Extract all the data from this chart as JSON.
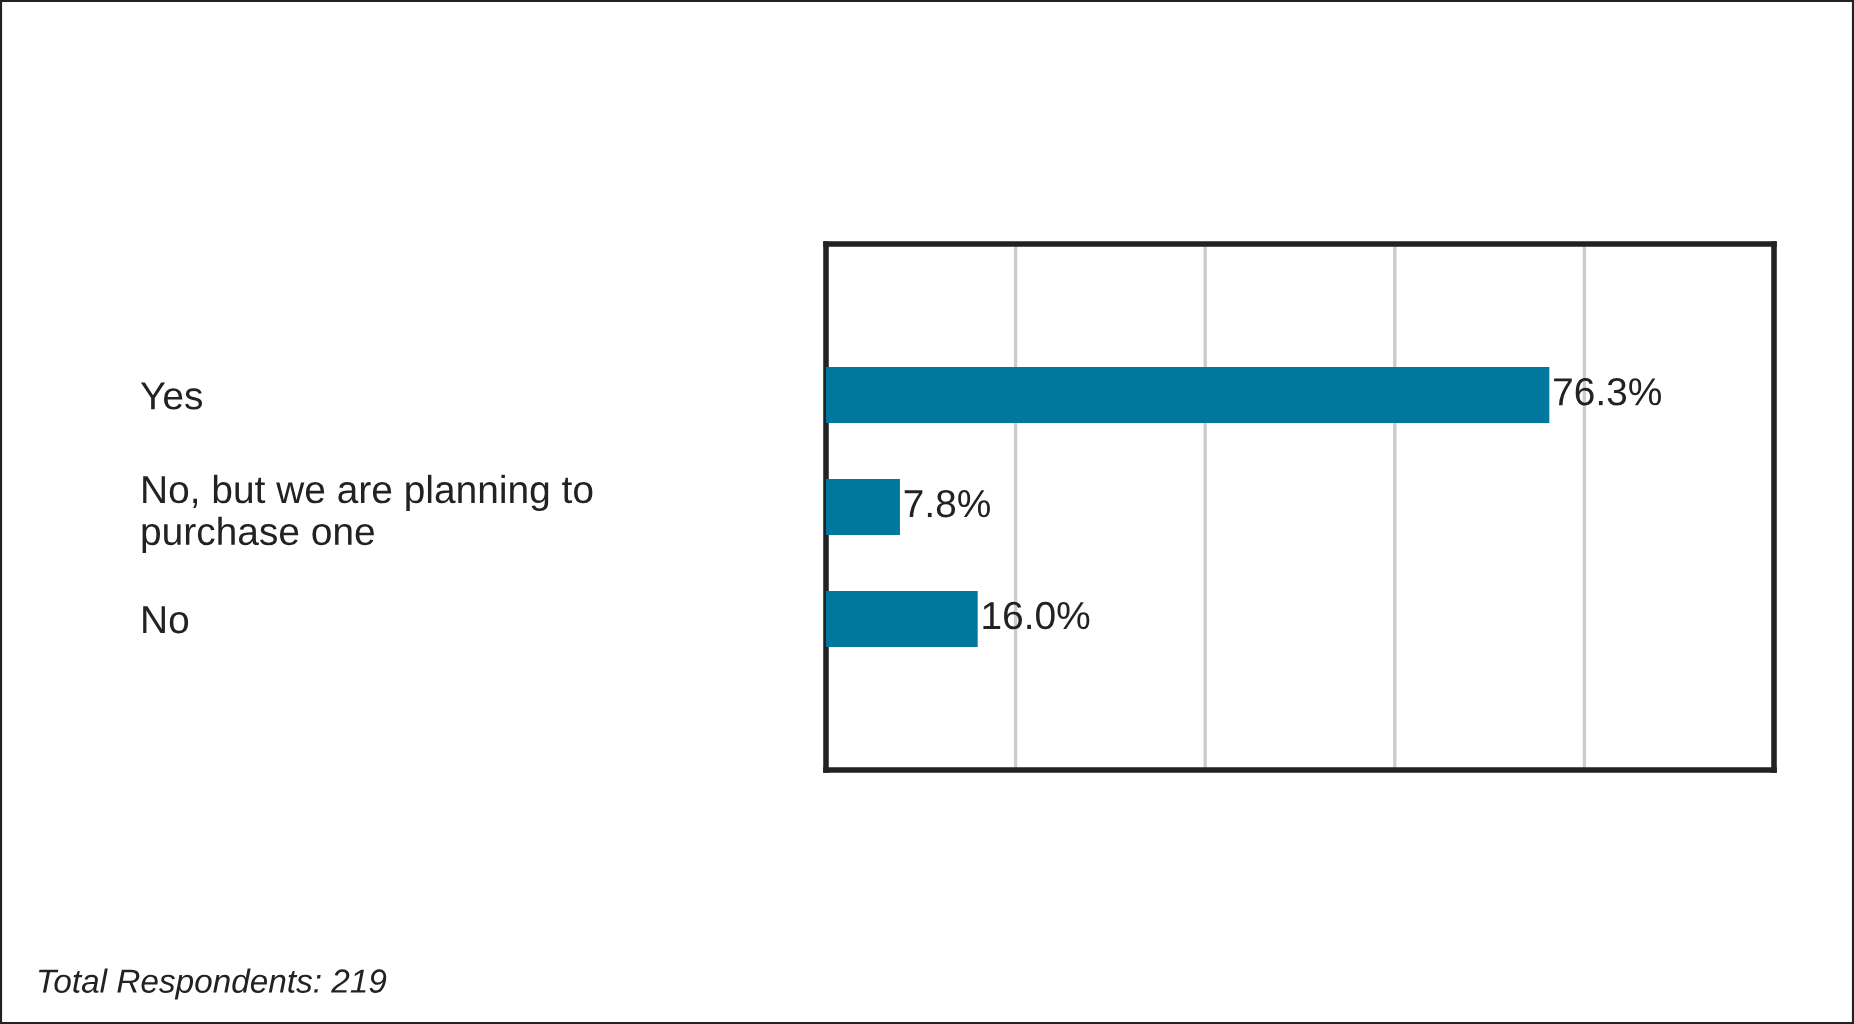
{
  "chart_data": {
    "type": "bar",
    "orientation": "horizontal",
    "categories": [
      "Yes",
      "No, but we are planning to\npurchase one",
      "No"
    ],
    "values": [
      76.3,
      7.8,
      16.0
    ],
    "value_labels": [
      "76.3%",
      "7.8%",
      "16.0%"
    ],
    "color": "#00789e",
    "xlim": [
      0,
      100
    ],
    "xticks": [
      {
        "value": 20,
        "label": null
      },
      {
        "value": 40,
        "label": null
      },
      {
        "value": 60,
        "label": null
      },
      {
        "value": 80,
        "label": null
      }
    ],
    "grid": "x",
    "annotations": [
      "Total Respondents: 219"
    ]
  }
}
